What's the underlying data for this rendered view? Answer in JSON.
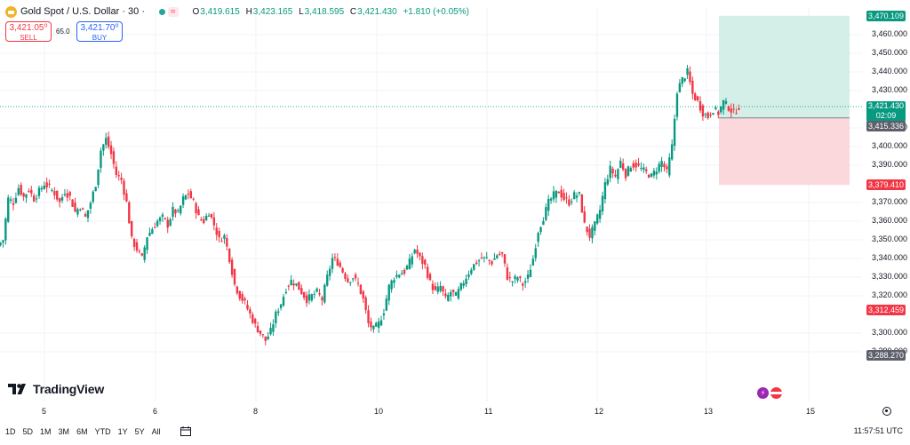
{
  "header": {
    "symbol": "Gold Spot / U.S. Dollar · 30 ·",
    "open_label": "O",
    "open": "3,419.615",
    "high_label": "H",
    "high": "3,423.165",
    "low_label": "L",
    "low": "3,418.595",
    "close_label": "C",
    "close": "3,421.430",
    "change": "+1.810 (+0.05%)"
  },
  "trade": {
    "sell_price": "3,421.05⁰",
    "sell_label": "SELL",
    "spread": "65.0",
    "buy_price": "3,421.70⁰",
    "buy_label": "BUY"
  },
  "logo": {
    "text": "TradingView"
  },
  "price_axis": {
    "ticks": [
      "3,460.000",
      "3,450.000",
      "3,440.000",
      "3,430.000",
      "3,410.000",
      "3,400.000",
      "3,390.000",
      "3,370.000",
      "3,360.000",
      "3,350.000",
      "3,340.000",
      "3,330.000",
      "3,320.000",
      "3,300.000",
      "3,290.000"
    ],
    "partial_tick": "3,290.000",
    "tags": {
      "target": "3,470.109",
      "last": "3,421.430",
      "countdown": "02:09",
      "entry": "3,415.336",
      "stop": "3,379.410",
      "low_level": "3,312.459",
      "bottom": "3,288.270"
    }
  },
  "time_axis": {
    "labels": [
      "5",
      "6",
      "8",
      "10",
      "11",
      "12",
      "13",
      "15"
    ]
  },
  "toolbar": {
    "timeframes": [
      "1D",
      "5D",
      "1M",
      "3M",
      "6M",
      "YTD",
      "1Y",
      "5Y",
      "All"
    ],
    "clock": "11:57:51 UTC"
  },
  "colors": {
    "up": "#089981",
    "down": "#f23645",
    "target_zone": "#d4efe7",
    "stop_zone": "#fbd8dc",
    "entry_line": "#7b8190",
    "last_line": "#26a69a"
  },
  "chart_data": {
    "type": "candlestick",
    "instrument": "Gold Spot / U.S. Dollar",
    "interval": "30",
    "y_range": [
      3285,
      3472
    ],
    "x_labels": [
      "5",
      "6",
      "8",
      "10",
      "11",
      "12",
      "13",
      "15"
    ],
    "last": 3421.43,
    "position_tool": {
      "target": 3470.109,
      "entry": 3415.336,
      "stop": 3379.41
    },
    "series_close_path": [
      3350,
      3372,
      3370,
      3378,
      3373,
      3377,
      3372,
      3376,
      3380,
      3378,
      3375,
      3370,
      3376,
      3373,
      3365,
      3368,
      3362,
      3370,
      3380,
      3398,
      3404,
      3396,
      3385,
      3382,
      3370,
      3350,
      3345,
      3340,
      3352,
      3356,
      3360,
      3362,
      3358,
      3366,
      3364,
      3372,
      3375,
      3370,
      3362,
      3360,
      3365,
      3358,
      3350,
      3352,
      3340,
      3326,
      3320,
      3316,
      3310,
      3304,
      3300,
      3296,
      3301,
      3310,
      3316,
      3324,
      3328,
      3326,
      3322,
      3318,
      3320,
      3322,
      3318,
      3330,
      3340,
      3338,
      3333,
      3328,
      3330,
      3326,
      3318,
      3305,
      3302,
      3305,
      3312,
      3325,
      3330,
      3332,
      3333,
      3338,
      3345,
      3340,
      3336,
      3327,
      3322,
      3325,
      3318,
      3322,
      3320,
      3325,
      3330,
      3335,
      3338,
      3340,
      3340,
      3338,
      3342,
      3342,
      3330,
      3328,
      3330,
      3326,
      3330,
      3340,
      3355,
      3362,
      3370,
      3374,
      3376,
      3372,
      3370,
      3374,
      3374,
      3358,
      3352,
      3358,
      3366,
      3380,
      3388,
      3384,
      3392,
      3385,
      3390,
      3390,
      3388,
      3386,
      3384,
      3388,
      3392,
      3386,
      3400,
      3430,
      3436,
      3440,
      3428,
      3424,
      3418,
      3416,
      3420,
      3418,
      3424,
      3421,
      3418,
      3421.43
    ]
  }
}
